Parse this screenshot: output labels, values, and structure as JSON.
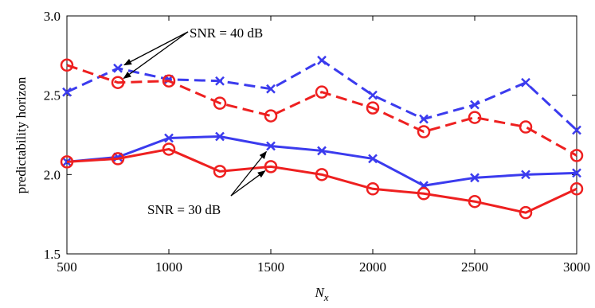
{
  "chart_data": {
    "type": "line",
    "title": "",
    "xlabel_main": "N",
    "xlabel_sub": "x",
    "ylabel": "predictability horizon",
    "xlim": [
      500,
      3000
    ],
    "ylim": [
      1.5,
      3.0
    ],
    "x_ticks": [
      500,
      1000,
      1500,
      2000,
      2500,
      3000
    ],
    "y_ticks": [
      "1.5",
      "2.0",
      "2.5",
      "3.0"
    ],
    "y_tick_values": [
      1.5,
      2.0,
      2.5,
      3.0
    ],
    "grid": false,
    "x": [
      500,
      750,
      1000,
      1250,
      1500,
      1750,
      2000,
      2250,
      2500,
      2750,
      3000
    ],
    "series": [
      {
        "color": "#3b3bee",
        "line": "dashed",
        "marker": "x",
        "values": [
          2.52,
          2.67,
          2.6,
          2.59,
          2.54,
          2.72,
          2.5,
          2.35,
          2.44,
          2.58,
          2.28
        ]
      },
      {
        "color": "#ee2020",
        "line": "dashed",
        "marker": "o",
        "values": [
          2.69,
          2.58,
          2.59,
          2.45,
          2.37,
          2.52,
          2.42,
          2.27,
          2.36,
          2.3,
          2.12
        ]
      },
      {
        "color": "#3b3bee",
        "line": "solid",
        "marker": "x",
        "values": [
          2.08,
          2.11,
          2.23,
          2.24,
          2.18,
          2.15,
          2.1,
          1.93,
          1.98,
          2.0,
          2.01
        ]
      },
      {
        "color": "#ee2020",
        "line": "solid",
        "marker": "o",
        "values": [
          2.08,
          2.1,
          2.16,
          2.02,
          2.05,
          2.0,
          1.91,
          1.88,
          1.83,
          1.76,
          1.91
        ]
      }
    ],
    "annotations": [
      {
        "text": "SNR = 40 dB",
        "targets": [
          [
            750,
            2.67
          ],
          [
            750,
            2.58
          ]
        ]
      },
      {
        "text": "SNR = 30 dB",
        "targets": [
          [
            1500,
            2.18
          ],
          [
            1500,
            2.05
          ]
        ]
      }
    ]
  }
}
